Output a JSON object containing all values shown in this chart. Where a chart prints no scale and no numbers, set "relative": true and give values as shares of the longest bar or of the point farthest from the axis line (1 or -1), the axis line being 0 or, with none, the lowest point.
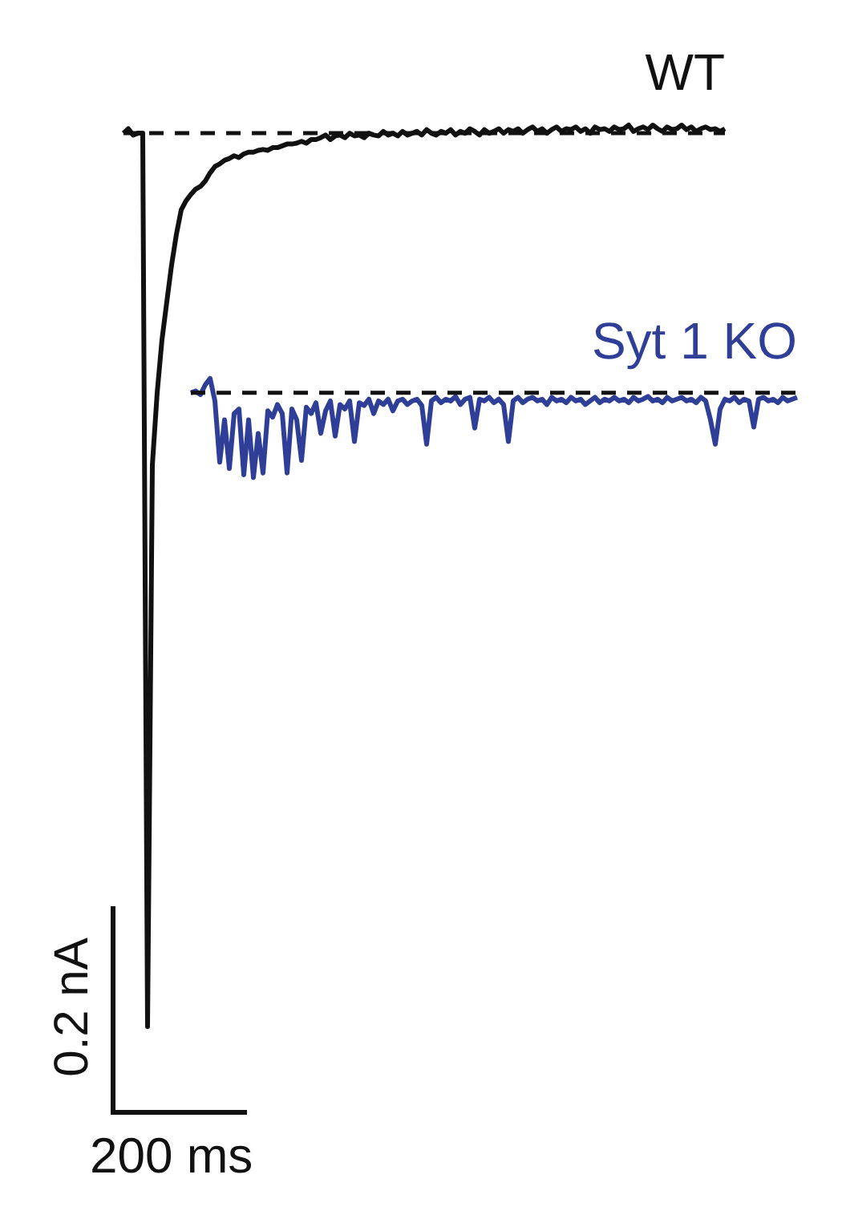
{
  "chart_data": {
    "type": "line",
    "relative": true,
    "marker": "none",
    "line_style": "solid",
    "categories": [
      null,
      null,
      null,
      null,
      null,
      null,
      null,
      null,
      null,
      null,
      null,
      null,
      null,
      null,
      null,
      null,
      null,
      null,
      null,
      null,
      null,
      null,
      null,
      null,
      null,
      null,
      null,
      null,
      null,
      null,
      null,
      null,
      null,
      null,
      null,
      null,
      null,
      null,
      null,
      null,
      null,
      null,
      null,
      null,
      null,
      null,
      null,
      null,
      null,
      null,
      null,
      null,
      null,
      null,
      null,
      null,
      null,
      null,
      null,
      null,
      null,
      null,
      null,
      null,
      null,
      null,
      null,
      null,
      null,
      null,
      null,
      null,
      null,
      null,
      null,
      null,
      null,
      null,
      null,
      null,
      null,
      null,
      null,
      null,
      null,
      null,
      null,
      null,
      null,
      null,
      null,
      null,
      null,
      null,
      null,
      null,
      null,
      null,
      null,
      null,
      null,
      null,
      null,
      null,
      null,
      null,
      null,
      null,
      null,
      null,
      null,
      null,
      null,
      null,
      null,
      null,
      null,
      null,
      null,
      null,
      null,
      null,
      null,
      null,
      null,
      null,
      null,
      null,
      null,
      null,
      null,
      null,
      null,
      null,
      null,
      null,
      null,
      null,
      null,
      null,
      null
    ],
    "series": [
      {
        "name": "WT",
        "color": "#111111",
        "values": [
          0.991,
          0.996,
          0.989,
          0.991,
          0.991,
          0,
          0.623,
          0.703,
          0.762,
          0.804,
          0.845,
          0.879,
          0.906,
          0.916,
          0.923,
          0.929,
          0.932,
          0.938,
          0.947,
          0.954,
          0.957,
          0.961,
          0.963,
          0.966,
          0.964,
          0.968,
          0.97,
          0.97,
          0.972,
          0.973,
          0.972,
          0.975,
          0.975,
          0.977,
          0.979,
          0.979,
          0.98,
          0.982,
          0.98,
          0.984,
          0.984,
          0.986,
          0.989,
          0.984,
          0.988,
          0.989,
          0.986,
          0.991,
          0.988,
          0.989,
          0.986,
          0.991,
          0.989,
          0.988,
          0.993,
          0.989,
          0.991,
          0.988,
          0.993,
          0.989,
          0.991,
          0.993,
          0.989,
          0.995,
          0.991,
          0.989,
          0.993,
          0.991,
          0.995,
          0.989,
          0.993,
          0.991,
          0.996,
          0.993,
          0.989,
          0.995,
          0.991,
          0.993,
          0.996,
          0.991,
          0.995,
          0.993,
          0.996,
          0.991,
          0.995,
          0.998,
          0.993,
          0.996,
          0.991,
          0.995,
          0.998,
          0.993,
          0.996,
          0.995,
          0.998,
          0.993,
          0.996,
          0.991,
          0.998,
          0.995,
          0.996,
          0.993,
          0.998,
          0.995,
          0.996,
          1,
          0.993,
          0.996,
          0.998,
          0.995,
          1,
          0.996,
          0.993,
          0.998,
          0.995,
          0.996,
          1,
          0.995,
          0.998,
          0.993,
          0.996,
          0.998,
          0.995,
          0.996,
          0.993,
          0.996,
          null,
          null,
          null,
          null,
          null,
          null,
          null,
          null,
          null,
          null,
          null,
          null,
          null,
          null,
          null
        ]
      },
      {
        "name": "Syt 1 KO",
        "color": "#2f3f97",
        "values": [
          null,
          null,
          null,
          null,
          null,
          null,
          null,
          null,
          null,
          null,
          null,
          null,
          null,
          null,
          0.703,
          0.705,
          0.701,
          0.712,
          0.719,
          0.694,
          0.626,
          0.673,
          0.619,
          0.68,
          0.685,
          0.612,
          0.673,
          0.609,
          0.658,
          0.614,
          0.683,
          0.676,
          0.69,
          0.68,
          0.614,
          0.685,
          0.673,
          0.628,
          0.687,
          0.68,
          0.692,
          0.658,
          0.683,
          0.694,
          0.655,
          0.69,
          0.685,
          0.694,
          0.649,
          0.692,
          0.689,
          0.696,
          0.68,
          0.694,
          0.69,
          0.696,
          0.683,
          0.694,
          0.696,
          0.69,
          0.694,
          0.696,
          0.689,
          0.646,
          0.694,
          0.698,
          0.692,
          0.696,
          0.694,
          0.699,
          0.69,
          0.696,
          0.698,
          0.664,
          0.696,
          0.694,
          0.698,
          0.692,
          0.696,
          0.69,
          0.649,
          0.694,
          0.698,
          0.692,
          0.696,
          0.698,
          0.694,
          0.696,
          0.69,
          0.698,
          0.694,
          0.696,
          0.692,
          0.698,
          0.694,
          0.696,
          0.69,
          0.694,
          0.698,
          0.692,
          0.696,
          0.694,
          0.698,
          0.694,
          0.696,
          0.692,
          0.698,
          0.694,
          0.696,
          0.699,
          0.694,
          0.696,
          0.692,
          0.698,
          0.694,
          0.696,
          0.698,
          0.694,
          0.696,
          0.692,
          0.698,
          0.694,
          0.673,
          0.646,
          0.685,
          0.696,
          0.694,
          0.698,
          0.692,
          0.696,
          0.694,
          0.665,
          0.696,
          0.698,
          0.694,
          0.696,
          0.692,
          0.698,
          0.694,
          0.696,
          0.698
        ]
      },
      {
        "color": "#111111",
        "line_style": "dashed",
        "values": [
          0.991,
          0.991,
          0.991,
          0.991,
          0.991,
          0.991,
          0.991,
          0.991,
          0.991,
          0.991,
          0.991,
          0.991,
          0.991,
          0.991,
          0.991,
          0.991,
          0.991,
          0.991,
          0.991,
          0.991,
          0.991,
          0.991,
          0.991,
          0.991,
          0.991,
          0.991,
          0.991,
          0.991,
          0.991,
          0.991,
          0.991,
          0.991,
          0.991,
          0.991,
          0.991,
          0.991,
          0.991,
          0.991,
          0.991,
          0.991,
          0.991,
          0.991,
          0.991,
          0.991,
          0.991,
          0.991,
          0.991,
          0.991,
          0.991,
          0.991,
          0.991,
          0.991,
          0.991,
          0.991,
          0.991,
          0.991,
          0.991,
          0.991,
          0.991,
          0.991,
          0.991,
          0.991,
          0.991,
          0.991,
          0.991,
          0.991,
          0.991,
          0.991,
          0.991,
          0.991,
          0.991,
          0.991,
          0.991,
          0.991,
          0.991,
          0.991,
          0.991,
          0.991,
          0.991,
          0.991,
          0.991,
          0.991,
          0.991,
          0.991,
          0.991,
          0.991,
          0.991,
          0.991,
          0.991,
          0.991,
          0.991,
          0.991,
          0.991,
          0.991,
          0.991,
          0.991,
          0.991,
          0.991,
          0.991,
          0.991,
          0.991,
          0.991,
          0.991,
          0.991,
          0.991,
          0.991,
          0.991,
          0.991,
          0.991,
          0.991,
          0.991,
          0.991,
          0.991,
          0.991,
          0.991,
          0.991,
          0.991,
          0.991,
          0.991,
          0.991,
          0.991,
          0.991,
          0.991,
          0.991,
          0.991,
          0.991,
          null,
          null,
          null,
          null,
          null,
          null,
          null,
          null,
          null,
          null,
          null,
          null,
          null,
          null,
          null
        ]
      },
      {
        "color": "#111111",
        "line_style": "dashed",
        "values": [
          null,
          null,
          null,
          null,
          null,
          null,
          null,
          null,
          null,
          null,
          null,
          null,
          null,
          null,
          0.703,
          0.703,
          0.703,
          0.703,
          0.703,
          0.703,
          0.703,
          0.703,
          0.703,
          0.703,
          0.703,
          0.703,
          0.703,
          0.703,
          0.703,
          0.703,
          0.703,
          0.703,
          0.703,
          0.703,
          0.703,
          0.703,
          0.703,
          0.703,
          0.703,
          0.703,
          0.703,
          0.703,
          0.703,
          0.703,
          0.703,
          0.703,
          0.703,
          0.703,
          0.703,
          0.703,
          0.703,
          0.703,
          0.703,
          0.703,
          0.703,
          0.703,
          0.703,
          0.703,
          0.703,
          0.703,
          0.703,
          0.703,
          0.703,
          0.703,
          0.703,
          0.703,
          0.703,
          0.703,
          0.703,
          0.703,
          0.703,
          0.703,
          0.703,
          0.703,
          0.703,
          0.703,
          0.703,
          0.703,
          0.703,
          0.703,
          0.703,
          0.703,
          0.703,
          0.703,
          0.703,
          0.703,
          0.703,
          0.703,
          0.703,
          0.703,
          0.703,
          0.703,
          0.703,
          0.703,
          0.703,
          0.703,
          0.703,
          0.703,
          0.703,
          0.703,
          0.703,
          0.703,
          0.703,
          0.703,
          0.703,
          0.703,
          0.703,
          0.703,
          0.703,
          0.703,
          0.703,
          0.703,
          0.703,
          0.703,
          0.703,
          0.703,
          0.703,
          0.703,
          0.703,
          0.703,
          0.703,
          0.703,
          0.703,
          0.703,
          0.703,
          0.703,
          0.703,
          0.703,
          0.703,
          0.703,
          0.703,
          0.703,
          0.703,
          0.703,
          0.703,
          0.703,
          0.703,
          0.703,
          0.703,
          0.703,
          0.703
        ]
      }
    ],
    "annotations": [
      "0.2 nA",
      "200 ms"
    ]
  }
}
